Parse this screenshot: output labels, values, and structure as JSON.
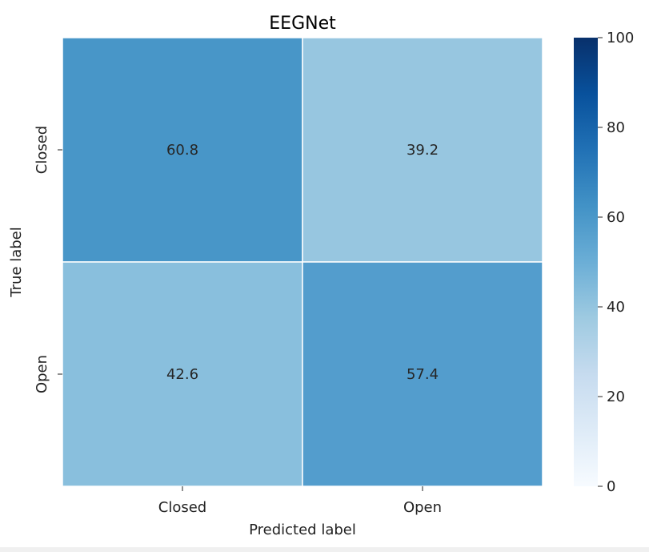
{
  "chart_data": {
    "type": "heatmap",
    "title": "EEGNet",
    "xlabel": "Predicted label",
    "ylabel": "True label",
    "x_categories": [
      "Closed",
      "Open"
    ],
    "y_categories": [
      "Closed",
      "Open"
    ],
    "values": [
      [
        60.8,
        39.2
      ],
      [
        42.6,
        57.4
      ]
    ],
    "colormap": "Blues",
    "vmin": 0,
    "vmax": 100,
    "colorbar_ticks": [
      0,
      20,
      40,
      60,
      80,
      100
    ]
  }
}
